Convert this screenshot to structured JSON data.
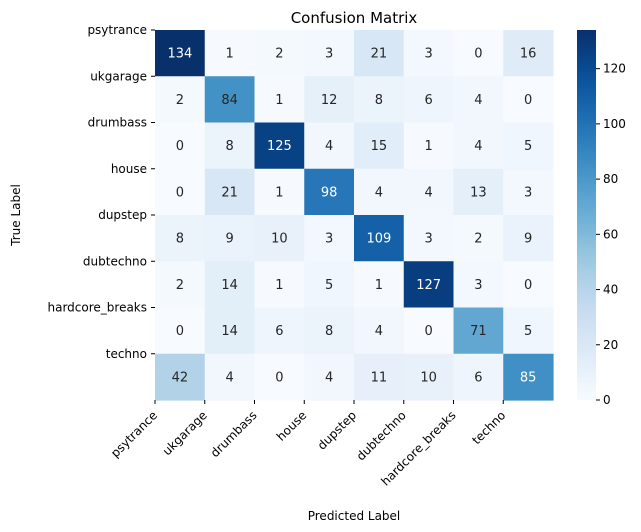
{
  "chart_data": {
    "type": "heatmap",
    "title": "Confusion Matrix",
    "xlabel": "Predicted Label",
    "ylabel": "True Label",
    "x_categories": [
      "psytrance",
      "ukgarage",
      "drumbass",
      "house",
      "dupstep",
      "dubtechno",
      "hardcore_breaks",
      "techno"
    ],
    "y_categories": [
      "psytrance",
      "ukgarage",
      "drumbass",
      "house",
      "dupstep",
      "dubtechno",
      "hardcore_breaks",
      "techno"
    ],
    "values": [
      [
        134,
        1,
        2,
        3,
        21,
        3,
        0,
        16
      ],
      [
        2,
        84,
        1,
        12,
        8,
        6,
        4,
        0
      ],
      [
        0,
        8,
        125,
        4,
        15,
        1,
        4,
        5
      ],
      [
        0,
        21,
        1,
        98,
        4,
        4,
        13,
        3
      ],
      [
        8,
        9,
        10,
        3,
        109,
        3,
        2,
        9
      ],
      [
        2,
        14,
        1,
        5,
        1,
        127,
        3,
        0
      ],
      [
        0,
        14,
        6,
        8,
        4,
        0,
        71,
        5
      ],
      [
        42,
        4,
        0,
        4,
        11,
        10,
        6,
        85
      ]
    ],
    "colormap": "Blues",
    "value_range": [
      0,
      134
    ],
    "colorbar_ticks": [
      0,
      20,
      40,
      60,
      80,
      100,
      120
    ],
    "colors": {
      "low": "#f7fbff",
      "high": "#08306b",
      "text_dark": "#262626",
      "text_light": "#ffffff"
    }
  }
}
